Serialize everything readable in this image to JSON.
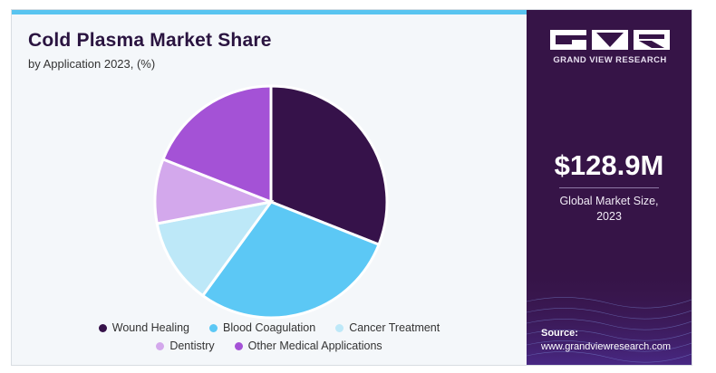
{
  "title": "Cold Plasma Market Share",
  "subtitle": "by Application 2023, (%)",
  "brand": {
    "name": "GRAND VIEW RESEARCH",
    "logo_icon": "gvr-logo-icon"
  },
  "market": {
    "value": "$128.9M",
    "label_line1": "Global Market Size,",
    "label_line2": "2023"
  },
  "source": {
    "label": "Source:",
    "url": "www.grandviewresearch.com"
  },
  "colors": {
    "wound_healing": "#36124a",
    "blood_coagulation": "#5cc8f5",
    "cancer_treatment": "#bde8f8",
    "dentistry": "#d3a8ec",
    "other": "#a452d6",
    "accent": "#58c4f0",
    "panel": "#361447"
  },
  "chart_data": {
    "type": "pie",
    "title": "Cold Plasma Market Share",
    "subtitle": "by Application 2023, (%)",
    "categories": [
      "Wound Healing",
      "Blood Coagulation",
      "Cancer Treatment",
      "Dentistry",
      "Other Medical Applications"
    ],
    "values": [
      31,
      29,
      12,
      9,
      19
    ],
    "colors": [
      "#36124a",
      "#5cc8f5",
      "#bde8f8",
      "#d3a8ec",
      "#a452d6"
    ],
    "legend_placement": "bottom"
  },
  "legend": {
    "row1": [
      "Wound Healing",
      "Blood Coagulation",
      "Cancer Treatment"
    ],
    "row2": [
      "Dentistry",
      "Other Medical Applications"
    ]
  }
}
